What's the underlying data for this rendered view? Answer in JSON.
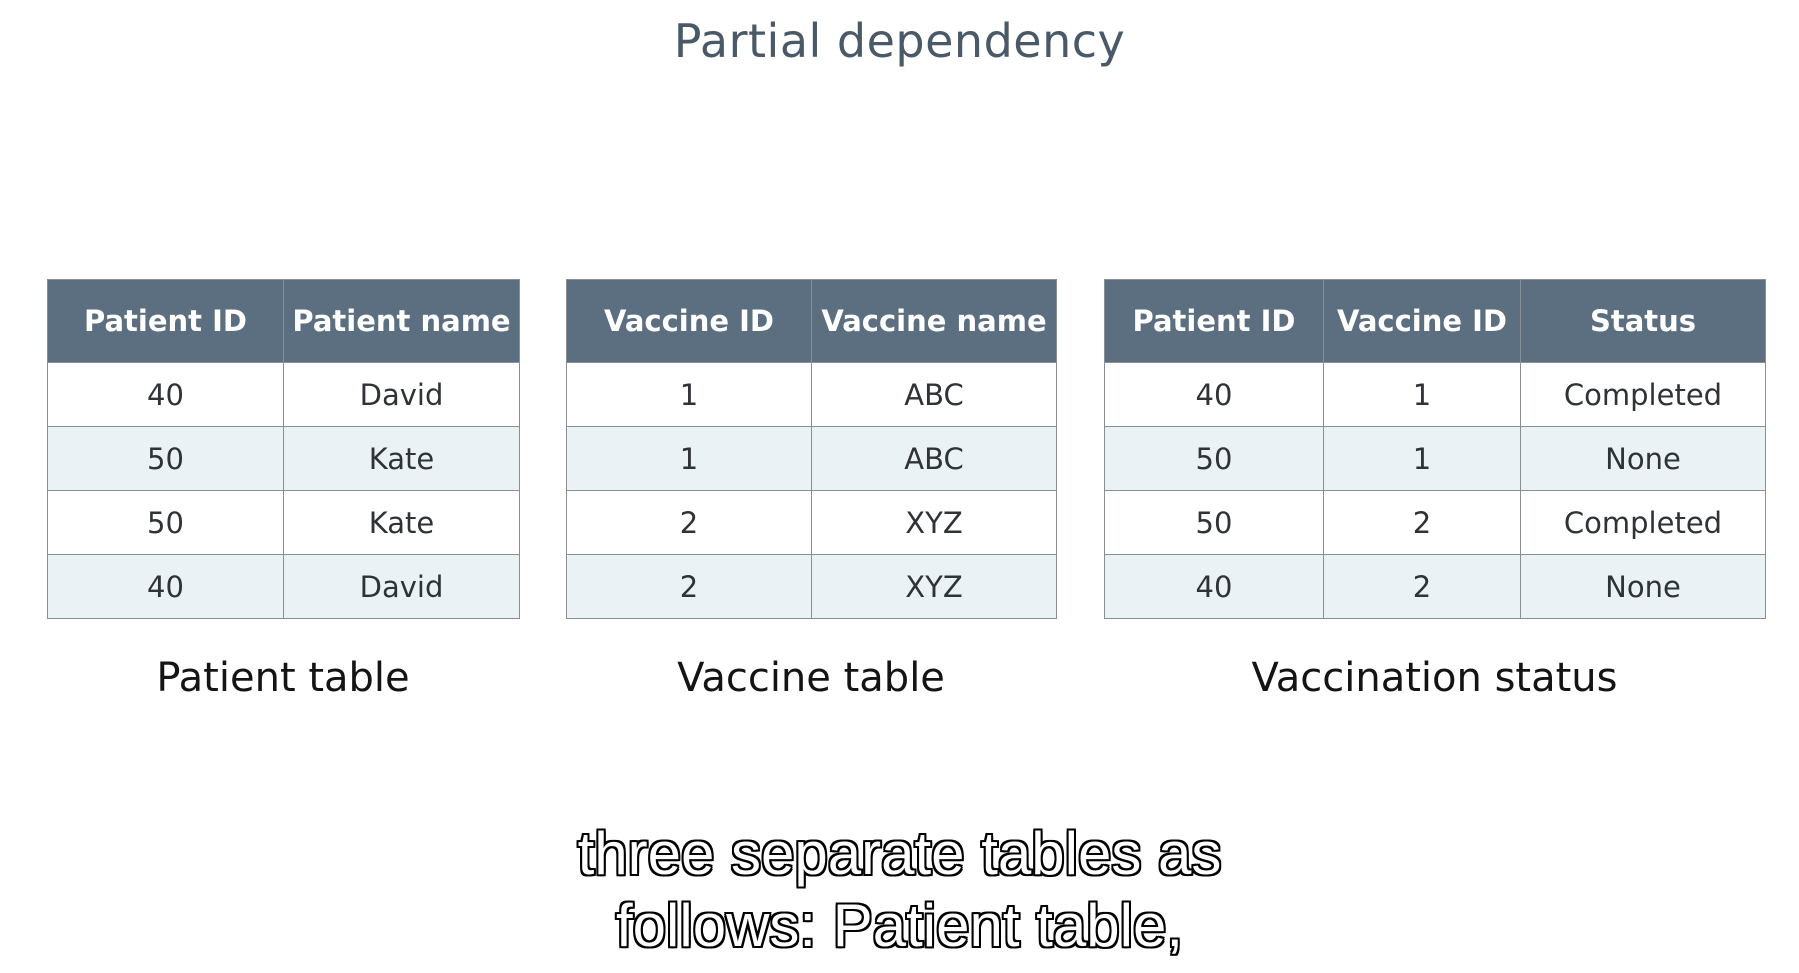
{
  "title": "Partial dependency",
  "patient_table": {
    "caption": "Patient table",
    "headers": [
      "Patient ID",
      "Patient name"
    ],
    "rows": [
      [
        "40",
        "David"
      ],
      [
        "50",
        "Kate"
      ],
      [
        "50",
        "Kate"
      ],
      [
        "40",
        "David"
      ]
    ]
  },
  "vaccine_table": {
    "caption": "Vaccine table",
    "headers": [
      "Vaccine ID",
      "Vaccine name"
    ],
    "rows": [
      [
        "1",
        "ABC"
      ],
      [
        "1",
        "ABC"
      ],
      [
        "2",
        "XYZ"
      ],
      [
        "2",
        "XYZ"
      ]
    ]
  },
  "status_table": {
    "caption": "Vaccination status",
    "headers": [
      "Patient ID",
      "Vaccine ID",
      "Status"
    ],
    "rows": [
      [
        "40",
        "1",
        "Completed"
      ],
      [
        "50",
        "1",
        "None"
      ],
      [
        "50",
        "2",
        "Completed"
      ],
      [
        "40",
        "2",
        "None"
      ]
    ]
  },
  "subtitle": {
    "line1": "three separate tables as",
    "line2": "follows: Patient table,"
  }
}
